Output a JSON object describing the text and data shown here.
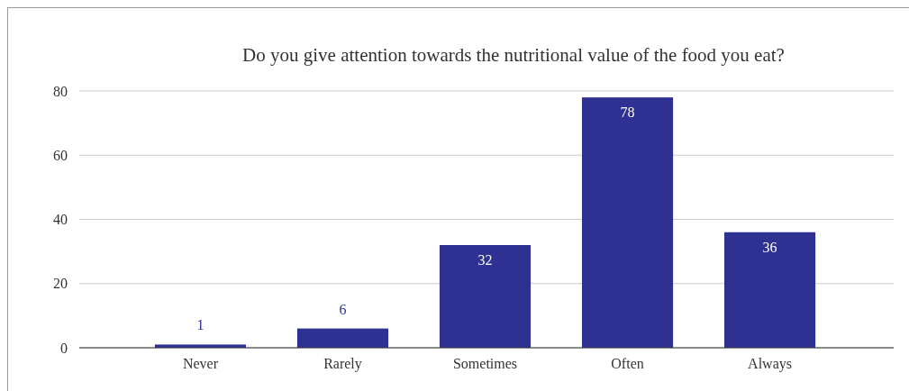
{
  "chart_data": {
    "type": "bar",
    "title": "Do you give attention towards the nutritional value of the food you eat?",
    "categories": [
      "Never",
      "Rarely",
      "Sometimes",
      "Often",
      "Always"
    ],
    "values": [
      1,
      6,
      32,
      78,
      36
    ],
    "color": "#2e3192",
    "ylim": [
      0,
      80
    ],
    "yticks": [
      0,
      20,
      40,
      60,
      80
    ],
    "grid": "y",
    "data_labels": true
  }
}
